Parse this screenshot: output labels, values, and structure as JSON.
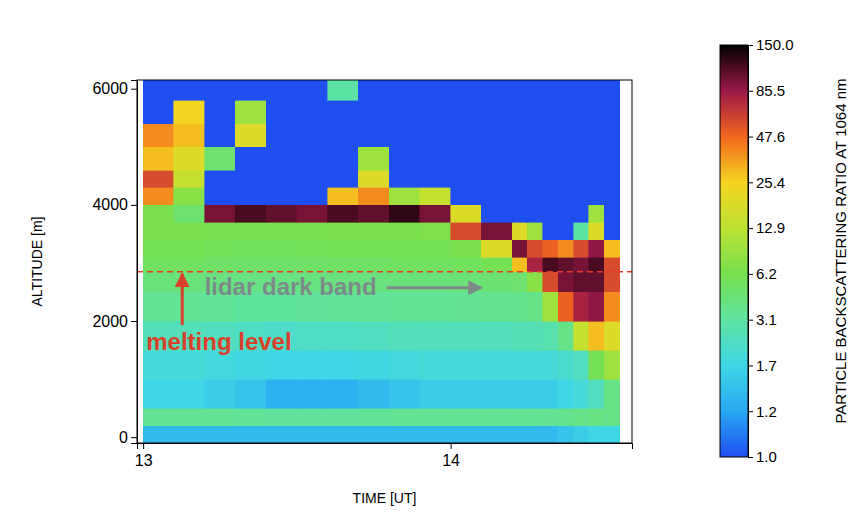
{
  "chart_data": {
    "type": "heatmap",
    "x_label": "TIME [UT]",
    "y_label": "ALTITUDE [m]",
    "xlim": [
      12.98,
      14.59
    ],
    "xticks": [
      13,
      14
    ],
    "ylim": [
      -100,
      6150
    ],
    "yticks": [
      0,
      2000,
      4000,
      6000
    ],
    "x_edges": [
      13.0,
      13.1,
      13.2,
      13.3,
      13.4,
      13.5,
      13.6,
      13.7,
      13.8,
      13.9,
      14.0,
      14.1,
      14.2,
      14.25,
      14.3,
      14.35,
      14.4,
      14.45,
      14.5,
      14.55
    ],
    "y_edges": [
      -100,
      200,
      500,
      1000,
      1500,
      2000,
      2500,
      2850,
      3100,
      3400,
      3700,
      4000,
      4300,
      4600,
      5000,
      5400,
      5800,
      6150
    ],
    "cells": [
      [
        1.4,
        1.4,
        1.4,
        1.4,
        1.4,
        1.4,
        1.4,
        1.4,
        1.4,
        1.4,
        1.4,
        1.4,
        1.4,
        1.4,
        1.4,
        1.5,
        1.6,
        1.7,
        1.7
      ],
      [
        3.5,
        3.5,
        3.5,
        3.4,
        3.3,
        3.3,
        3.3,
        3.4,
        3.5,
        3.5,
        3.5,
        3.5,
        3.5,
        3.5,
        3.6,
        3.8,
        4,
        4.2,
        4
      ],
      [
        1.7,
        1.7,
        1.6,
        1.5,
        1.3,
        1.3,
        1.3,
        1.4,
        1.5,
        1.6,
        1.6,
        1.6,
        1.6,
        1.6,
        1.6,
        1.7,
        2,
        2.5,
        4
      ],
      [
        2,
        2,
        1.9,
        1.8,
        1.7,
        1.7,
        1.7,
        1.8,
        1.9,
        2,
        2,
        2,
        2,
        2,
        2,
        2.2,
        2.5,
        6,
        10
      ],
      [
        2.6,
        2.6,
        2.5,
        2.4,
        2.3,
        2.4,
        2.4,
        2.5,
        2.6,
        2.6,
        2.6,
        2.6,
        2.7,
        2.7,
        2.8,
        4,
        15,
        30,
        20
      ],
      [
        3.5,
        3.5,
        3.4,
        3.2,
        3.2,
        3.3,
        3.4,
        3.4,
        3.5,
        3.5,
        3.6,
        3.7,
        3.8,
        4,
        10,
        50,
        80,
        90,
        40
      ],
      [
        4.5,
        4.5,
        4.3,
        4.2,
        4.2,
        4.3,
        4.4,
        4.4,
        4.5,
        4.5,
        4.6,
        4.8,
        5,
        8,
        60,
        100,
        110,
        110,
        60
      ],
      [
        5.5,
        5.5,
        5.3,
        5.2,
        5.2,
        5.3,
        5.4,
        5.4,
        5.5,
        5.5,
        5.6,
        6,
        30,
        80,
        120,
        110,
        100,
        120,
        60
      ],
      [
        6,
        6,
        5.8,
        5.6,
        5.6,
        5.8,
        6,
        6,
        6,
        6,
        6.5,
        20,
        100,
        60,
        50,
        40,
        60,
        90,
        30
      ],
      [
        6.5,
        6.5,
        6.3,
        6.2,
        6.2,
        6.3,
        6.5,
        6.5,
        6.5,
        7,
        60,
        100,
        20,
        10,
        1,
        1,
        3,
        20,
        1
      ],
      [
        6.5,
        5,
        100,
        120,
        110,
        100,
        120,
        110,
        130,
        100,
        20,
        1,
        1,
        1,
        1,
        1,
        1,
        10,
        1
      ],
      [
        40,
        8,
        1,
        1,
        1,
        1,
        30,
        40,
        10,
        15,
        1,
        1,
        1,
        1,
        1,
        1,
        1,
        1,
        1
      ],
      [
        60,
        15,
        1,
        1,
        1,
        1,
        1,
        20,
        1,
        1,
        1,
        1,
        1,
        1,
        1,
        1,
        1,
        1,
        1
      ],
      [
        30,
        20,
        5,
        1,
        1,
        1,
        1,
        10,
        1,
        1,
        1,
        1,
        1,
        1,
        1,
        1,
        1,
        1,
        1
      ],
      [
        40,
        30,
        1,
        20,
        1,
        1,
        1,
        1,
        1,
        1,
        1,
        1,
        1,
        1,
        1,
        1,
        1,
        1,
        1
      ],
      [
        1,
        25,
        1,
        10,
        1,
        1,
        1,
        1,
        1,
        1,
        1,
        1,
        1,
        1,
        1,
        1,
        1,
        1,
        1
      ],
      [
        1,
        1,
        1,
        1,
        1,
        1,
        3,
        1,
        1,
        1,
        1,
        1,
        1,
        1,
        1,
        1,
        1,
        1,
        1
      ]
    ],
    "colorbar": {
      "label": "PARTICLE BACKSCATTERING RATIO AT 1064 nm",
      "range": [
        1,
        150
      ],
      "ticks": [
        {
          "value": 1,
          "label": "1.0"
        },
        1.2,
        1.7,
        3.1,
        6.2,
        12.9,
        25.4,
        47.6,
        85.5,
        {
          "value": 150,
          "label": "150.0"
        }
      ]
    },
    "reference_line": {
      "y": 2850,
      "line_style": "dashed",
      "color": "#e8382a"
    },
    "annotations": [
      {
        "text": "melting level",
        "x": 13.01,
        "y": 1500,
        "color": "#d9412b"
      },
      {
        "text": "lidar dark band",
        "x": 13.2,
        "y": 2450,
        "color": "#7d8a8a"
      }
    ]
  }
}
